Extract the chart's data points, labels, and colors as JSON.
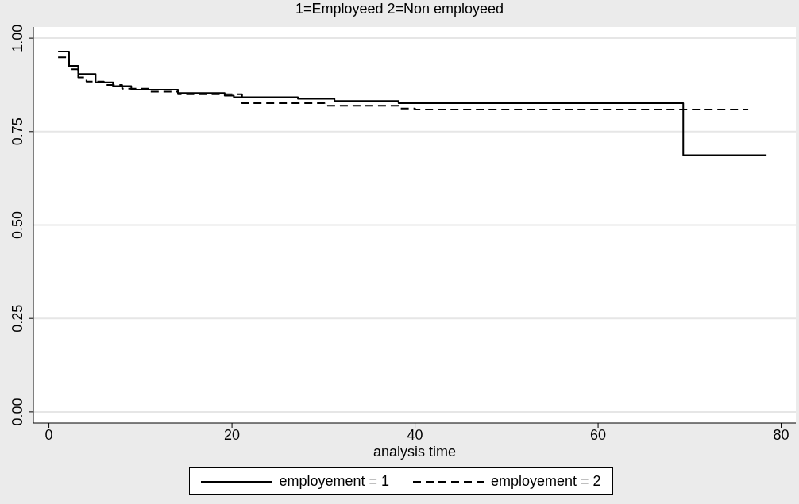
{
  "chart_data": {
    "type": "step",
    "title": "1=Employeed  2=Non employeed",
    "xlabel": "analysis time",
    "xlim": [
      -1.7,
      81.6
    ],
    "xticks": [
      0,
      20,
      40,
      60,
      80
    ],
    "ylim": [
      -0.03,
      1.03
    ],
    "yticks": [
      {
        "value": 0,
        "label": "0.00"
      },
      {
        "value": 0.25,
        "label": "0.25"
      },
      {
        "value": 0.5,
        "label": "0.50"
      },
      {
        "value": 0.75,
        "label": "0.75"
      },
      {
        "value": 1,
        "label": "1.00"
      }
    ],
    "grid": "y",
    "legend": "bottom",
    "series": [
      {
        "name": "employement = 1",
        "color": "#000000",
        "line_style": "solid",
        "x": [
          1,
          2.2,
          3.2,
          5.1,
          7,
          9,
          14.1,
          19.2,
          20.2,
          27.2,
          31.2,
          38.2,
          69.3,
          78.4
        ],
        "values": [
          0.964,
          0.926,
          0.904,
          0.882,
          0.872,
          0.862,
          0.853,
          0.846,
          0.842,
          0.838,
          0.832,
          0.826,
          0.687,
          0.687
        ]
      },
      {
        "name": "employement = 2",
        "color": "#000000",
        "line_style": "dashed",
        "x": [
          1,
          2.2,
          3.2,
          4.1,
          6,
          8,
          11,
          14.1,
          21.1,
          30.1,
          38.2,
          40,
          76.4
        ],
        "values": [
          0.949,
          0.917,
          0.895,
          0.884,
          0.875,
          0.865,
          0.857,
          0.85,
          0.826,
          0.819,
          0.812,
          0.809,
          0.809
        ]
      }
    ]
  }
}
